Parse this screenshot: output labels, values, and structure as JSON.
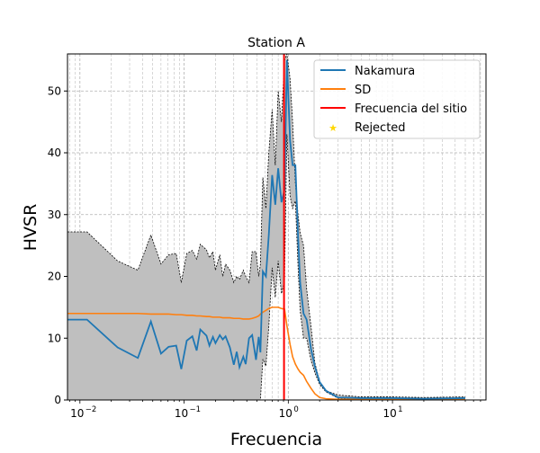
{
  "chart_data": {
    "type": "line",
    "title": "Station A",
    "xlabel": "Frecuencia",
    "ylabel": "HVSR",
    "xscale": "log",
    "xlim": [
      0.0076,
      79
    ],
    "ylim": [
      0,
      56
    ],
    "grid": true,
    "legend_placement": "top-right",
    "x_ticks": [
      {
        "v": 0.01,
        "base": "10",
        "exp": "−2"
      },
      {
        "v": 0.1,
        "base": "10",
        "exp": "−1"
      },
      {
        "v": 1,
        "base": "10",
        "exp": "0"
      },
      {
        "v": 10,
        "base": "10",
        "exp": "1"
      }
    ],
    "y_ticks": [
      "0",
      "10",
      "20",
      "30",
      "40",
      "50"
    ],
    "colors": {
      "nakamura": "#1f77b4",
      "sd": "#ff7f0e",
      "site": "#ff0000",
      "rejected": "#ffd700",
      "band": "#bfbfbf"
    },
    "x": [
      0.0076,
      0.0117,
      0.023,
      0.036,
      0.048,
      0.06,
      0.071,
      0.084,
      0.094,
      0.106,
      0.12,
      0.132,
      0.143,
      0.164,
      0.175,
      0.189,
      0.2,
      0.22,
      0.235,
      0.25,
      0.275,
      0.3,
      0.32,
      0.34,
      0.37,
      0.39,
      0.42,
      0.45,
      0.49,
      0.52,
      0.54,
      0.57,
      0.61,
      0.65,
      0.7,
      0.75,
      0.8,
      0.86,
      0.92,
      0.97,
      1.04,
      1.1,
      1.17,
      1.24,
      1.3,
      1.4,
      1.5,
      1.65,
      1.8,
      2.0,
      2.3,
      3,
      5,
      10,
      20,
      50
    ],
    "nakamura": [
      13,
      13,
      8.5,
      6.8,
      12.7,
      7.5,
      8.6,
      8.8,
      5,
      9.6,
      10.3,
      8.0,
      11.4,
      10.4,
      8.8,
      10.2,
      9.2,
      10.5,
      9.8,
      10.3,
      8.5,
      5.7,
      7.8,
      5.3,
      7.0,
      5.8,
      10.0,
      10.5,
      6.5,
      10.2,
      7.7,
      20.8,
      20,
      26.7,
      36.4,
      31.6,
      37.5,
      32,
      34,
      55,
      42,
      38,
      38,
      26.7,
      19,
      14,
      13,
      8.3,
      5.4,
      2.9,
      1.5,
      0.4,
      0.3,
      0.3,
      0.2,
      0.3
    ],
    "sd": [
      14,
      14,
      14,
      14,
      13.9,
      13.9,
      13.9,
      13.8,
      13.8,
      13.7,
      13.7,
      13.6,
      13.6,
      13.5,
      13.5,
      13.4,
      13.4,
      13.4,
      13.3,
      13.3,
      13.3,
      13.2,
      13.2,
      13.2,
      13.1,
      13.1,
      13.1,
      13.2,
      13.4,
      13.6,
      13.9,
      14.2,
      14.5,
      14.8,
      15,
      15,
      15,
      14.8,
      14.7,
      12,
      9,
      7,
      5.8,
      5,
      4.5,
      4,
      3,
      1.9,
      1,
      0.4,
      0.2,
      0.1,
      0.1,
      0.1,
      0.1,
      0.1
    ],
    "upper": [
      27.2,
      27.2,
      22.5,
      21,
      26.7,
      22,
      23.5,
      23.7,
      19,
      23.7,
      24.2,
      22.8,
      25.2,
      24.3,
      23,
      24,
      21,
      23.5,
      20,
      22,
      21,
      19,
      20,
      19.5,
      21,
      20,
      19,
      24,
      24,
      20,
      22,
      36,
      31,
      40,
      47,
      38,
      50,
      45,
      55,
      56,
      52,
      45,
      35,
      30,
      27,
      25,
      18,
      12,
      6,
      3,
      1.5,
      0.8,
      0.5,
      0.5,
      0.4,
      0.5
    ],
    "site_frequency": 0.91,
    "legend": [
      "Nakamura",
      "SD",
      "Frecuencia del sitio",
      "Rejected"
    ]
  }
}
